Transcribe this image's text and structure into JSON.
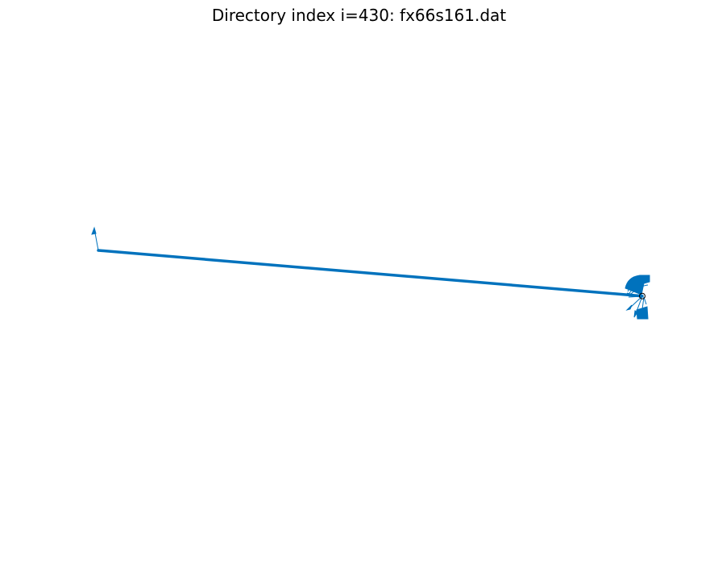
{
  "figure": {
    "title": "Directory index i=430: fx66s161.dat"
  },
  "chart_data": {
    "type": "line",
    "title": "Directory index i=430: fx66s161.dat",
    "xlabel": "",
    "ylabel": "",
    "axes_visible": false,
    "grid": false,
    "legend": "none",
    "series_color": "#0072BD",
    "marker_color": "#000000",
    "series": [
      {
        "values": [
          {
            "x": 0.0,
            "y": 0.0
          },
          {
            "x": 1.0,
            "y": -0.084
          }
        ]
      }
    ],
    "marker": {
      "x": 1.0,
      "y": -0.084,
      "style": "open-circle"
    }
  }
}
